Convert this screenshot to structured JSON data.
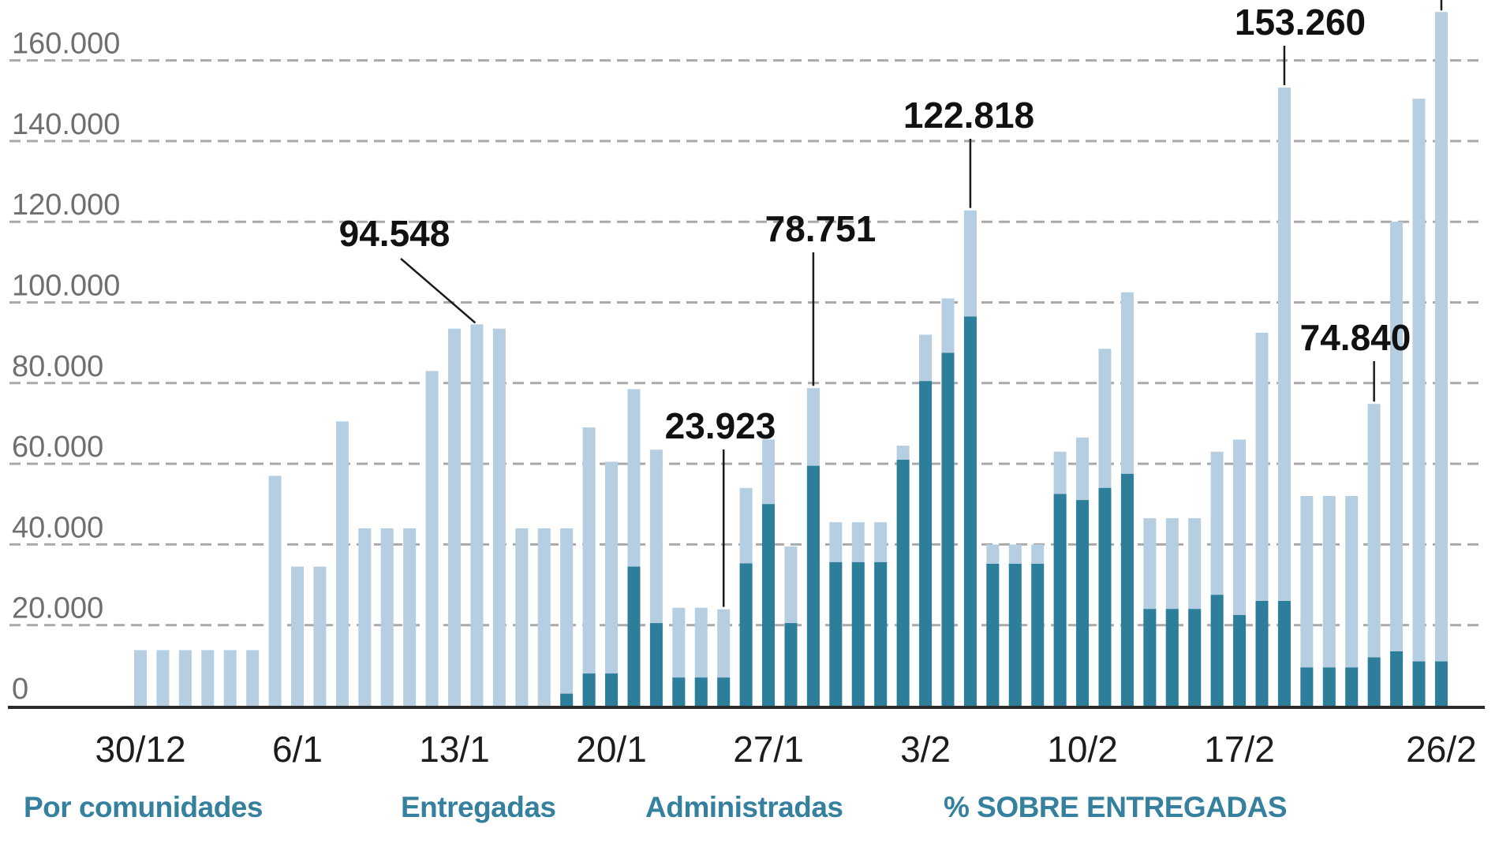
{
  "chart_data": {
    "type": "bar",
    "subtype": "overlaid-daily-bars",
    "title": "",
    "xlabel": "",
    "ylabel": "",
    "ylim": [
      0,
      175000
    ],
    "grid": "dashed-horizontal",
    "legend_position": "none",
    "categories": [
      "30/12",
      "31/12",
      "1/1",
      "2/1",
      "3/1",
      "4/1",
      "5/1",
      "6/1",
      "7/1",
      "8/1",
      "9/1",
      "10/1",
      "11/1",
      "12/1",
      "13/1",
      "14/1",
      "15/1",
      "16/1",
      "17/1",
      "18/1",
      "19/1",
      "20/1",
      "21/1",
      "22/1",
      "23/1",
      "24/1",
      "25/1",
      "26/1",
      "27/1",
      "28/1",
      "29/1",
      "30/1",
      "31/1",
      "1/2",
      "2/2",
      "3/2",
      "4/2",
      "5/2",
      "6/2",
      "7/2",
      "8/2",
      "9/2",
      "10/2",
      "11/2",
      "12/2",
      "13/2",
      "14/2",
      "15/2",
      "16/2",
      "17/2",
      "18/2",
      "19/2",
      "20/2",
      "21/2",
      "22/2",
      "23/2",
      "24/2",
      "25/2",
      "26/2"
    ],
    "series": [
      {
        "name": "Entregadas",
        "color": "#b5cee2",
        "values": [
          13800,
          13800,
          13800,
          13800,
          13800,
          13800,
          57000,
          34500,
          34500,
          70500,
          44000,
          44000,
          44000,
          83000,
          93500,
          94548,
          93500,
          44000,
          44000,
          44000,
          69000,
          60500,
          78500,
          63500,
          24300,
          24300,
          23923,
          54000,
          66000,
          39500,
          78751,
          45500,
          45500,
          45500,
          64500,
          92000,
          101000,
          122818,
          40000,
          40000,
          40000,
          63000,
          66500,
          88500,
          102500,
          46500,
          46500,
          46500,
          63000,
          66000,
          92500,
          153260,
          52000,
          52000,
          52000,
          74840,
          120000,
          150500,
          172000
        ]
      },
      {
        "name": "Administradas",
        "color": "#2d7e9b",
        "values": [
          0,
          0,
          0,
          0,
          0,
          0,
          0,
          0,
          0,
          0,
          0,
          0,
          0,
          0,
          0,
          0,
          0,
          0,
          0,
          3000,
          8000,
          8000,
          34500,
          20500,
          7000,
          7000,
          7000,
          35300,
          50000,
          20500,
          59500,
          35600,
          35600,
          35600,
          61000,
          80500,
          87500,
          96500,
          35200,
          35200,
          35200,
          52500,
          51000,
          54000,
          57500,
          24000,
          24000,
          24000,
          27500,
          22500,
          26000,
          26000,
          9500,
          9500,
          9500,
          12000,
          13500,
          11000,
          11000
        ]
      }
    ],
    "ytick_values": [
      160000,
      140000,
      120000,
      100000,
      80000,
      60000,
      40000,
      20000,
      0
    ],
    "ytick_labels": [
      "160.000",
      "140.000",
      "120.000",
      "100.000",
      "80.000",
      "60.000",
      "40.000",
      "20.000",
      "0"
    ],
    "xtick_labels": [
      "30/12",
      "6/1",
      "13/1",
      "20/1",
      "27/1",
      "3/2",
      "10/2",
      "17/2",
      "26/2"
    ],
    "annotations": [
      {
        "label": "94.548",
        "category": "14/1",
        "value": 94548
      },
      {
        "label": "23.923",
        "category": "25/1",
        "value": 23923
      },
      {
        "label": "78.751",
        "category": "29/1",
        "value": 78751
      },
      {
        "label": "122.818",
        "category": "5/2",
        "value": 122818
      },
      {
        "label": "153.260",
        "category": "19/2",
        "value": 153260
      },
      {
        "label": "74.840",
        "category": "23/2",
        "value": 74840
      }
    ],
    "clipped_pointer_category": "26/2"
  },
  "footer": {
    "items": [
      {
        "label": "Por comunidades"
      },
      {
        "label": "Entregadas"
      },
      {
        "label": "Administradas"
      },
      {
        "label": "% SOBRE ENTREGADAS"
      }
    ]
  },
  "colors": {
    "bar_delivered": "#b5cee2",
    "bar_administered": "#2d7e9b",
    "footer_link": "#35809f",
    "axis_label": "#6f6f6f",
    "date_label": "#1c1c1c",
    "annotation": "#111111",
    "gridline": "#a9a9a9",
    "baseline": "#2b2b2b"
  }
}
